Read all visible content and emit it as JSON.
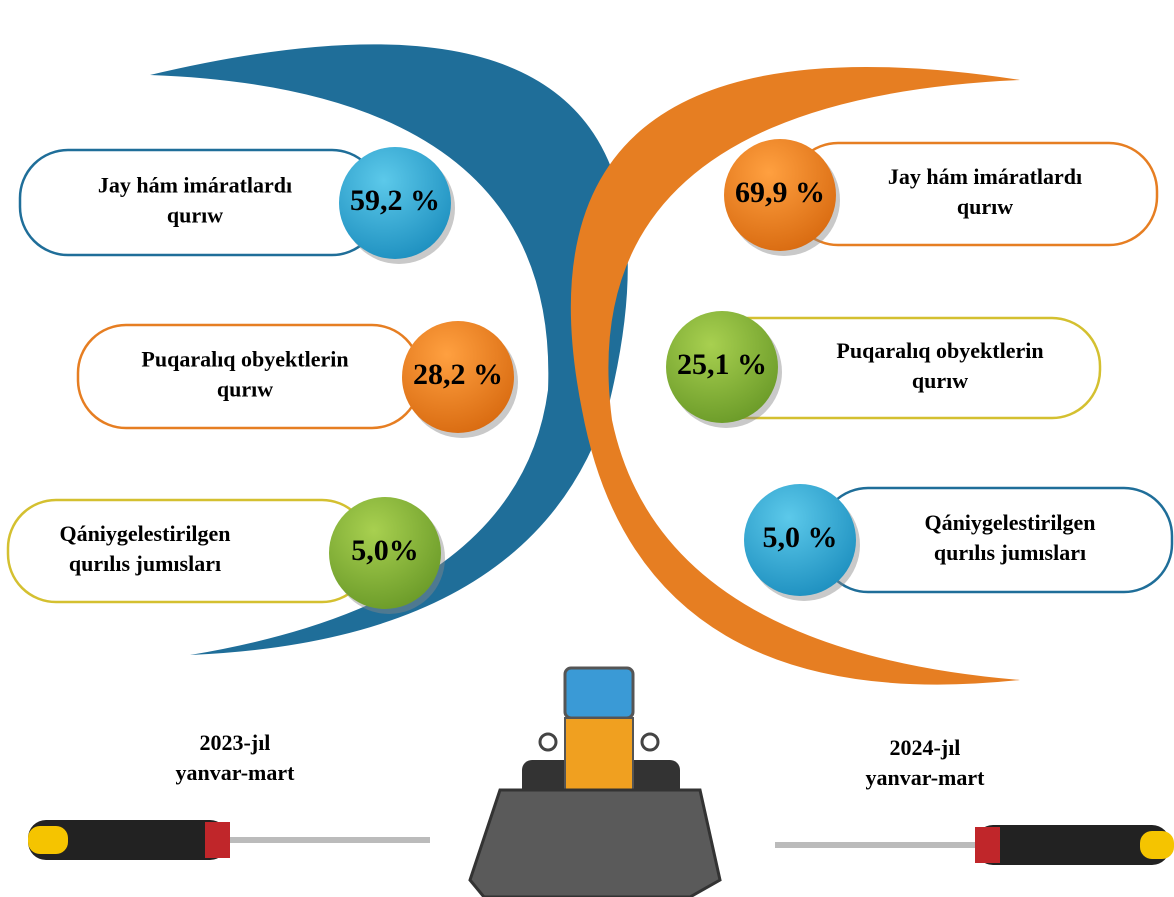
{
  "panels": [
    {
      "period": [
        "2023-jıl",
        "yanvar-mart"
      ],
      "items": [
        {
          "label": [
            "Jay hám imáratlardı",
            "qurıw"
          ],
          "value": "59,2 %"
        },
        {
          "label": [
            "Puqaralıq obyektlerin",
            "qurıw"
          ],
          "value": "28,2 %"
        },
        {
          "label": [
            "Qániygelestirilgen",
            "qurılıs jumısları"
          ],
          "value": "5,0%"
        }
      ]
    },
    {
      "period": [
        "2024-jıl",
        "yanvar-mart"
      ],
      "items": [
        {
          "label": [
            "Jay hám imáratlardı",
            "qurıw"
          ],
          "value": "69,9 %"
        },
        {
          "label": [
            "Puqaralıq obyektlerin",
            "qurıw"
          ],
          "value": "25,1 %"
        },
        {
          "label": [
            "Qániygelestirilgen",
            "qurılıs jumısları"
          ],
          "value": "5,0 %"
        }
      ]
    }
  ]
}
